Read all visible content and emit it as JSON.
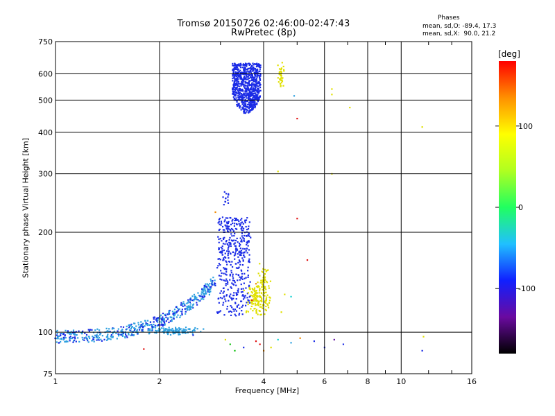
{
  "header": {
    "title_line1": "Tromsø 20150726 02:46:00-02:47:43",
    "title_line2": "RwPretec (8p)",
    "stats_title": "Phases",
    "stats_o": "mean, sd,O: -89.4, 17.3",
    "stats_x": "mean, sd,X:  90.0, 21.2"
  },
  "colors": {
    "blue": "#1a2be6",
    "lightblue": "#2ea0e0",
    "yellow": "#e0e000",
    "orange": "#f08a00",
    "red": "#e01010",
    "green": "#10c010",
    "cyan": "#10d0d0",
    "purple": "#6010a0",
    "grid": "#000000"
  },
  "chart_data": {
    "type": "scatter",
    "title": "Tromsø 20150726 02:46:00-02:47:43",
    "subtitle": "RwPretec (8p)",
    "xlabel": "Frequency [MHz]",
    "ylabel": "Stationary phase Virtual Height [km]",
    "x_scale": "log",
    "y_scale": "log",
    "xlim": [
      1,
      16
    ],
    "ylim": [
      75,
      750
    ],
    "x_ticks": [
      1,
      2,
      4,
      6,
      8,
      10,
      16
    ],
    "x_tick_labels": [
      "1",
      "2",
      "4",
      "6",
      "8",
      "10",
      "16"
    ],
    "y_ticks": [
      75,
      100,
      200,
      300,
      400,
      500,
      600,
      750
    ],
    "y_tick_labels": [
      "75",
      "100",
      "200",
      "300",
      "400",
      "500",
      "600",
      "750"
    ],
    "grid": true,
    "colorbar": {
      "label": "[deg]",
      "range": [
        -180,
        180
      ],
      "ticks": [
        100,
        0,
        -100
      ],
      "tick_labels": [
        "100",
        "0",
        "-100"
      ],
      "stops": [
        "#000000",
        "#6a0aa0",
        "#1020ff",
        "#20c0ff",
        "#20ff60",
        "#b0ff20",
        "#ffff00",
        "#ff9000",
        "#ff0000"
      ]
    },
    "series": [
      {
        "color_key": "blue",
        "x": [
          3.2,
          3.4,
          3.6,
          3.8,
          3.3,
          3.5,
          3.7,
          3.4,
          3.6
        ],
        "y": [
          640,
          640,
          640,
          630,
          540,
          500,
          480,
          470,
          470
        ]
      },
      {
        "color_key": "blue",
        "x": [
          3.1,
          3.15,
          3.2,
          3.3,
          3.4,
          3.5,
          3.6,
          3.2,
          3.3,
          3.0
        ],
        "y": [
          260,
          240,
          220,
          200,
          190,
          180,
          170,
          150,
          130,
          120
        ]
      },
      {
        "color_key": "lightblue",
        "x": [
          1.0,
          1.1,
          1.2,
          1.4,
          1.6,
          1.8,
          2.0,
          2.2,
          2.4,
          2.6,
          2.8
        ],
        "y": [
          96,
          98,
          100,
          102,
          100,
          103,
          105,
          112,
          120,
          128,
          135
        ]
      },
      {
        "color_key": "yellow",
        "x": [
          3.6,
          3.8,
          4.0,
          4.4,
          4.5,
          3.7,
          4.1
        ],
        "y": [
          110,
          115,
          125,
          130,
          610,
          580,
          150
        ]
      },
      {
        "color_key": "red",
        "x": [
          4.9,
          5.0,
          5.3,
          1.8
        ],
        "y": [
          440,
          220,
          165,
          90
        ]
      }
    ]
  }
}
